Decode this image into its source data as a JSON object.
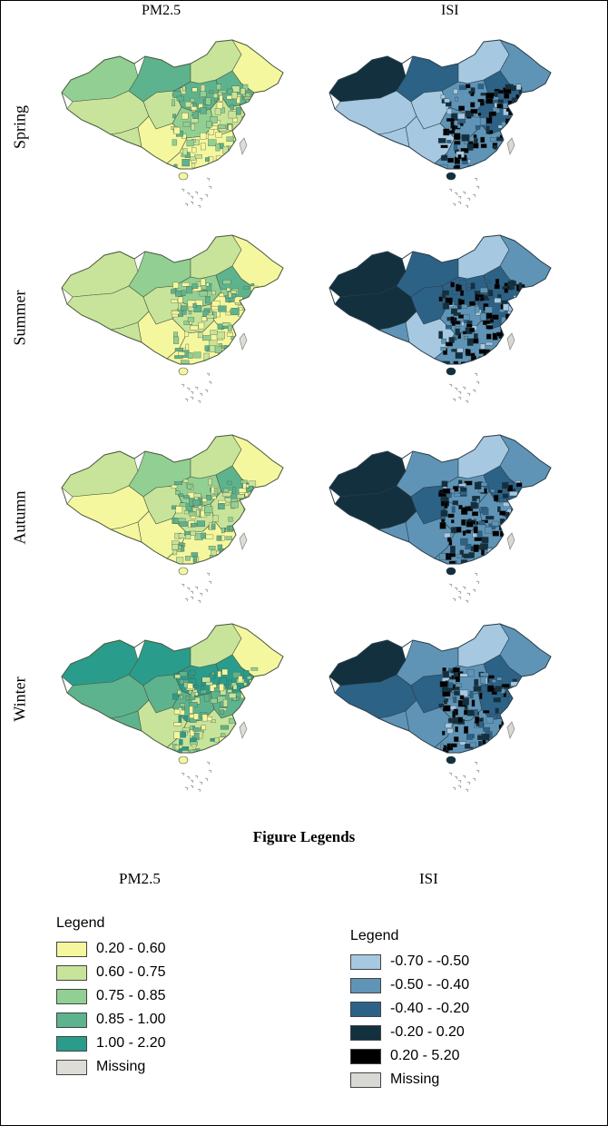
{
  "columns": {
    "pm25": "PM2.5",
    "isi": "ISI"
  },
  "rows": [
    {
      "label": "Spring",
      "pm25_scheme": "spring",
      "isi_scheme": "spring"
    },
    {
      "label": "Summer",
      "pm25_scheme": "summer",
      "isi_scheme": "summer"
    },
    {
      "label": "Autumn",
      "pm25_scheme": "autumn",
      "isi_scheme": "autumn"
    },
    {
      "label": "Winter",
      "pm25_scheme": "winter",
      "isi_scheme": "winter"
    }
  ],
  "figure_title": "Figure Legends",
  "legend_heads": {
    "pm25": "PM2.5",
    "isi": "ISI"
  },
  "pm25_legend": {
    "title": "Legend",
    "items": [
      {
        "label": "0.20 - 0.60",
        "color": "#f5f79f"
      },
      {
        "label": "0.60 - 0.75",
        "color": "#c7e49a"
      },
      {
        "label": "0.75 - 0.85",
        "color": "#92cf93"
      },
      {
        "label": "0.85 - 1.00",
        "color": "#5db38d"
      },
      {
        "label": "1.00 - 2.20",
        "color": "#2a9c8c"
      },
      {
        "label": "Missing",
        "color": "#dddcd6"
      }
    ]
  },
  "isi_legend": {
    "title": "Legend",
    "items": [
      {
        "label": "-0.70 - -0.50",
        "color": "#a6c8e1"
      },
      {
        "label": "-0.50 - -0.40",
        "color": "#5f94b6"
      },
      {
        "label": "-0.40 - -0.20",
        "color": "#2d6287"
      },
      {
        "label": "-0.20 - 0.20",
        "color": "#13303f"
      },
      {
        "label": "0.20 - 5.20",
        "color": "#000000"
      },
      {
        "label": "Missing",
        "color": "#d8d8d4"
      }
    ]
  }
}
